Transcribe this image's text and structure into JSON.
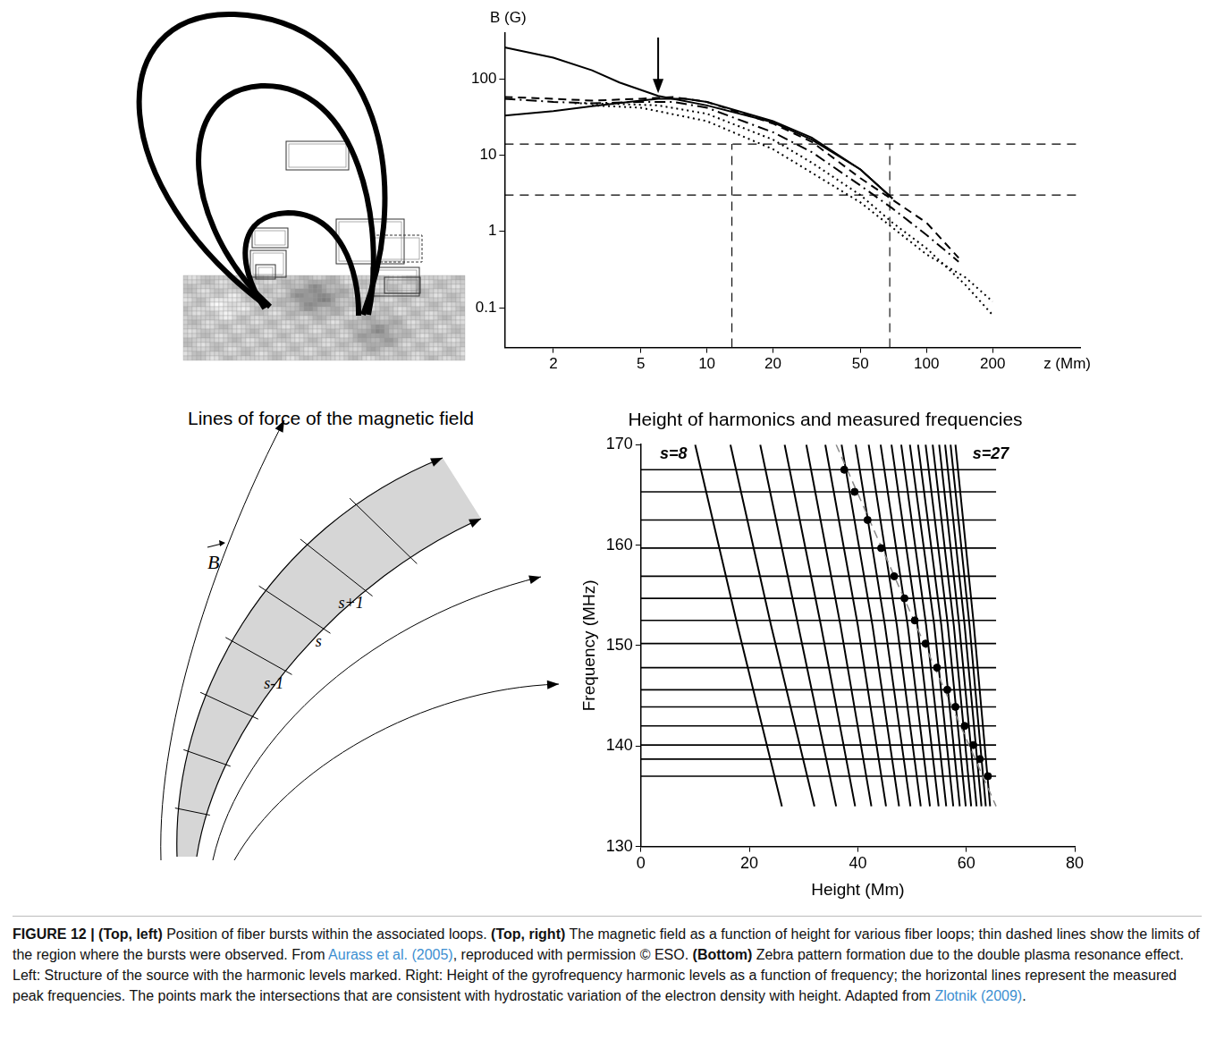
{
  "chart_data": [
    {
      "type": "line",
      "log": true,
      "grid": false,
      "tick_labels": true,
      "y_label": "B (G)",
      "x_label": "z (Mm)",
      "xlim": [
        1.2,
        500
      ],
      "xticks": [
        2,
        5,
        10,
        20,
        50,
        100,
        200
      ],
      "ylim": [
        0.03,
        400
      ],
      "yticks": [
        0.1,
        1,
        10,
        100
      ],
      "series": [
        {
          "color": "#000000",
          "line_style": "solid",
          "x": [
            1.2,
            2,
            3,
            4,
            6,
            10,
            20,
            30,
            50,
            70
          ],
          "values": [
            260,
            190,
            130,
            90,
            60,
            45,
            27,
            16,
            6.5,
            2.7
          ]
        },
        {
          "color": "#000000",
          "line_style": "solid",
          "x": [
            1.2,
            2,
            3,
            5,
            6,
            8,
            10,
            20,
            30,
            50,
            70
          ],
          "values": [
            33,
            38,
            44,
            52,
            55,
            55,
            50,
            28,
            17,
            6.5,
            2.7
          ]
        },
        {
          "color": "#000000",
          "line_style": "dashed",
          "x": [
            1.2,
            2,
            3,
            5,
            7,
            10,
            20,
            30,
            50,
            70,
            100,
            140
          ],
          "values": [
            58,
            55,
            52,
            55,
            58,
            50,
            26,
            15,
            5,
            2.6,
            1.3,
            0.45
          ]
        },
        {
          "color": "#000000",
          "line_style": "dashdot",
          "x": [
            1.2,
            2,
            3,
            5,
            7,
            10,
            20,
            30,
            50,
            70,
            100,
            140
          ],
          "values": [
            55,
            50,
            48,
            50,
            50,
            42,
            20,
            11,
            4,
            2,
            0.9,
            0.4
          ]
        },
        {
          "color": "#000000",
          "line_style": "dotted",
          "x": [
            2.5,
            4,
            6,
            10,
            20,
            30,
            50,
            70,
            100,
            150,
            200
          ],
          "values": [
            48,
            47,
            45,
            35,
            16,
            8,
            3,
            1.3,
            0.6,
            0.2,
            0.08
          ]
        },
        {
          "color": "#000000",
          "line_style": "dotted",
          "x": [
            3,
            5,
            10,
            20,
            50,
            100,
            150,
            200
          ],
          "values": [
            45,
            42,
            28,
            12,
            2.4,
            0.5,
            0.25,
            0.12
          ]
        }
      ],
      "reference_lines": [
        {
          "x": [
            1.2,
            500
          ],
          "values": [
            14,
            14
          ]
        },
        {
          "x": [
            1.2,
            500
          ],
          "values": [
            3,
            3
          ]
        },
        {
          "x": [
            13,
            13
          ],
          "values": [
            0.03,
            14
          ]
        },
        {
          "x": [
            68,
            68
          ],
          "values": [
            0.03,
            14
          ]
        }
      ],
      "arrow": {
        "x": 6,
        "y_start": 350,
        "y_end": 65
      }
    },
    {
      "type": "line",
      "grid": false,
      "title": "Height of harmonics and measured frequencies",
      "x_label": "Height (Mm)",
      "y_label": "Frequency (MHz)",
      "xlim": [
        0,
        80
      ],
      "xticks": [
        0,
        20,
        40,
        60,
        80
      ],
      "ylim": [
        130,
        170
      ],
      "yticks": [
        130,
        140,
        150,
        160,
        170
      ],
      "annotations": [
        {
          "text": "s=8",
          "x": 6,
          "y": 169
        },
        {
          "text": "s=27",
          "x": 64.5,
          "y": 169
        }
      ],
      "harmonic_levels": {
        "frequencies": [
          170,
          152,
          134
        ],
        "color": "#000000",
        "heights": [
          [
            10,
            17.8,
            26
          ],
          [
            16.5,
            24,
            32
          ],
          [
            22,
            29,
            36
          ],
          [
            26.5,
            33.2,
            39.5
          ],
          [
            30.5,
            36.8,
            42.5
          ],
          [
            34,
            40,
            45.2
          ],
          [
            37,
            42.7,
            47.6
          ],
          [
            39.6,
            45,
            49.7
          ],
          [
            42,
            47.2,
            51.6
          ],
          [
            44.2,
            49.2,
            53.3
          ],
          [
            46.2,
            51,
            54.9
          ],
          [
            48,
            52.6,
            56.3
          ],
          [
            49.6,
            54.1,
            57.6
          ],
          [
            51.1,
            55.4,
            58.8
          ],
          [
            52.5,
            56.6,
            59.9
          ],
          [
            53.8,
            57.7,
            60.9
          ],
          [
            55,
            58.7,
            61.9
          ],
          [
            56.1,
            59.7,
            62.8
          ],
          [
            57.1,
            60.6,
            63.6
          ],
          [
            58,
            61.4,
            64.4
          ]
        ]
      },
      "measured_frequencies": {
        "values": [
          167.5,
          165.3,
          162.5,
          159.7,
          156.9,
          154.7,
          152.5,
          150.2,
          147.8,
          145.6,
          143.9,
          142.0,
          140.1,
          138.7,
          137.0
        ],
        "x_range": [
          0,
          65.5
        ],
        "color": "#000000"
      },
      "points": {
        "marker": "circle",
        "color": "#000000",
        "x": [
          37.5,
          39.4,
          41.8,
          44.3,
          46.7,
          48.6,
          50.5,
          52.5,
          54.6,
          56.5,
          58.0,
          59.7,
          61.3,
          62.5,
          64.0
        ],
        "values": [
          167.5,
          165.3,
          162.5,
          159.7,
          156.9,
          154.7,
          152.5,
          150.2,
          147.8,
          145.6,
          143.9,
          142.0,
          140.1,
          138.7,
          137.0
        ]
      },
      "fit_line": {
        "color": "#888888",
        "line_style": "dashed",
        "x": [
          36,
          65.5
        ],
        "values": [
          170,
          134
        ]
      }
    }
  ],
  "diagram": {
    "title": "Lines of force of the magnetic field",
    "vector_label": "B",
    "levels": [
      "s-1",
      "s",
      "s+1"
    ]
  },
  "caption": [
    {
      "text": "FIGURE 12 | ",
      "bold": true
    },
    {
      "text": "(Top, left)",
      "bold": true
    },
    {
      "text": " Position of fiber bursts within the associated loops. "
    },
    {
      "text": "(Top, right)",
      "bold": true
    },
    {
      "text": " The magnetic field as a function of height for various fiber loops; thin dashed lines show the limits of the region where the bursts were observed. From "
    },
    {
      "text": "Aurass et al. (2005)",
      "link": true
    },
    {
      "text": ", reproduced with permission © ESO. "
    },
    {
      "text": "(Bottom)",
      "bold": true
    },
    {
      "text": " Zebra pattern formation due to the double plasma resonance effect. Left: Structure of the source with the harmonic levels marked. Right: Height of the gyrofrequency harmonic levels as a function of frequency; the horizontal lines represent the measured peak frequencies. The points mark the intersections that are consistent with hydrostatic variation of the electron density with height. Adapted from "
    },
    {
      "text": "Zlotnik (2009)",
      "link": true
    },
    {
      "text": "."
    }
  ]
}
